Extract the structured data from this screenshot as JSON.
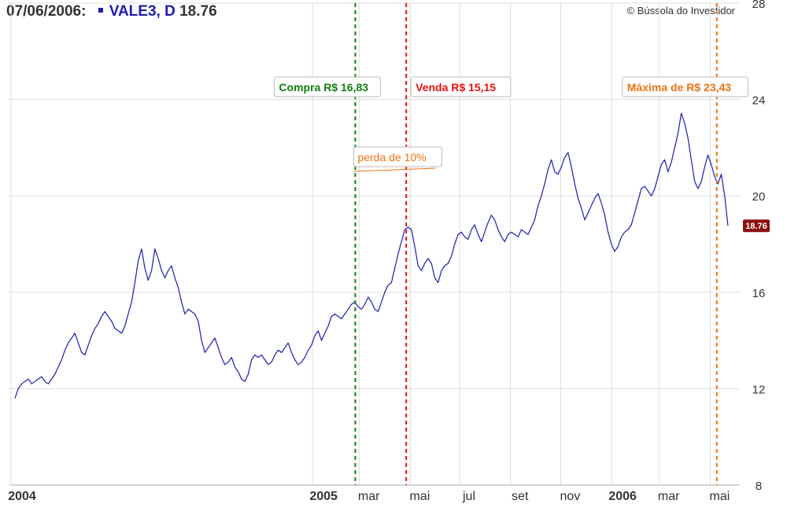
{
  "header": {
    "date": "07/06/2006:",
    "ticker": "VALE3, D",
    "price": "18.76"
  },
  "copyright": "© Bússola do Investidor",
  "colors": {
    "price_line": "#1c1cb0",
    "buy": "#108010",
    "sell": "#e81010",
    "max": "#f07010",
    "last_price_badge": "#8b1010",
    "grid": "#dddddd"
  },
  "chart_data": {
    "type": "line",
    "series": [
      {
        "name": "VALE3",
        "values": [
          11.6,
          12.0,
          12.2,
          12.3,
          12.4,
          12.2,
          12.3,
          12.4,
          12.5,
          12.3,
          12.2,
          12.4,
          12.6,
          12.9,
          13.2,
          13.6,
          13.9,
          14.1,
          14.3,
          13.9,
          13.5,
          13.4,
          13.8,
          14.2,
          14.5,
          14.7,
          15.0,
          15.2,
          15.0,
          14.8,
          14.5,
          14.4,
          14.3,
          14.6,
          15.1,
          15.6,
          16.4,
          17.3,
          17.8,
          17.0,
          16.5,
          16.9,
          17.8,
          17.4,
          16.9,
          16.6,
          16.9,
          17.1,
          16.6,
          16.2,
          15.6,
          15.1,
          15.3,
          15.2,
          15.1,
          14.8,
          14.0,
          13.5,
          13.7,
          13.9,
          14.1,
          13.7,
          13.3,
          13.0,
          13.1,
          13.3,
          12.9,
          12.7,
          12.4,
          12.3,
          12.6,
          13.2,
          13.4,
          13.3,
          13.4,
          13.2,
          13.0,
          13.1,
          13.4,
          13.6,
          13.5,
          13.7,
          13.9,
          13.5,
          13.2,
          13.0,
          13.1,
          13.3,
          13.6,
          13.8,
          14.2,
          14.4,
          14.0,
          14.3,
          14.6,
          15.0,
          15.1,
          15.0,
          14.9,
          15.1,
          15.3,
          15.5,
          15.6,
          15.4,
          15.3,
          15.5,
          15.8,
          15.6,
          15.3,
          15.2,
          15.6,
          16.0,
          16.3,
          16.4,
          17.0,
          17.6,
          18.1,
          18.6,
          18.7,
          18.6,
          17.9,
          17.1,
          16.9,
          17.2,
          17.4,
          17.2,
          16.6,
          16.4,
          16.9,
          17.1,
          17.2,
          17.5,
          18.0,
          18.4,
          18.5,
          18.3,
          18.2,
          18.6,
          18.8,
          18.4,
          18.1,
          18.5,
          18.9,
          19.2,
          19.0,
          18.6,
          18.3,
          18.1,
          18.4,
          18.5,
          18.4,
          18.3,
          18.6,
          18.5,
          18.4,
          18.7,
          19.0,
          19.6,
          20.0,
          20.5,
          21.1,
          21.5,
          21.0,
          20.9,
          21.2,
          21.6,
          21.8,
          21.2,
          20.5,
          19.9,
          19.5,
          19.0,
          19.3,
          19.6,
          19.9,
          20.1,
          19.7,
          19.2,
          18.5,
          18.0,
          17.7,
          17.9,
          18.3,
          18.5,
          18.6,
          18.8,
          19.3,
          19.8,
          20.3,
          20.4,
          20.2,
          20.0,
          20.3,
          20.8,
          21.3,
          21.5,
          21.0,
          21.4,
          22.0,
          22.6,
          23.43,
          23.0,
          22.4,
          21.5,
          20.6,
          20.3,
          20.6,
          21.2,
          21.7,
          21.3,
          20.8,
          20.5,
          20.9,
          20.0,
          18.76
        ]
      }
    ],
    "x_start": "2004-01-02",
    "x_end": "2006-06-07",
    "x_tick_labels": [
      {
        "label": "2004",
        "date": "2004-01-02",
        "bold": true
      },
      {
        "label": "2005",
        "date": "2005-01-03",
        "bold": true
      },
      {
        "label": "mar",
        "date": "2005-03-01",
        "bold": false
      },
      {
        "label": "mai",
        "date": "2005-05-02",
        "bold": false
      },
      {
        "label": "jul",
        "date": "2005-07-01",
        "bold": false
      },
      {
        "label": "set",
        "date": "2005-09-01",
        "bold": false
      },
      {
        "label": "nov",
        "date": "2005-11-01",
        "bold": false
      },
      {
        "label": "2006",
        "date": "2006-01-02",
        "bold": true
      },
      {
        "label": "mar",
        "date": "2006-03-01",
        "bold": false
      },
      {
        "label": "mai",
        "date": "2006-05-02",
        "bold": false
      }
    ],
    "y_ticks": [
      8,
      12,
      16,
      20,
      24,
      28
    ],
    "ylim": [
      8,
      28
    ],
    "markers": [
      {
        "id": "buy",
        "label": "Compra R$ 16,83",
        "date": "2005-02-24",
        "color": "#108010"
      },
      {
        "id": "sell",
        "label": "Venda R$ 15,15",
        "date": "2005-04-27",
        "color": "#e81010"
      },
      {
        "id": "max",
        "label": "Máxima de R$ 23,43",
        "date": "2006-05-10",
        "color": "#f07010"
      }
    ],
    "annotations": [
      {
        "id": "loss",
        "label": "perda de 10%"
      }
    ],
    "last_price": "18.76",
    "grid": true,
    "y_axis_position": "right"
  }
}
